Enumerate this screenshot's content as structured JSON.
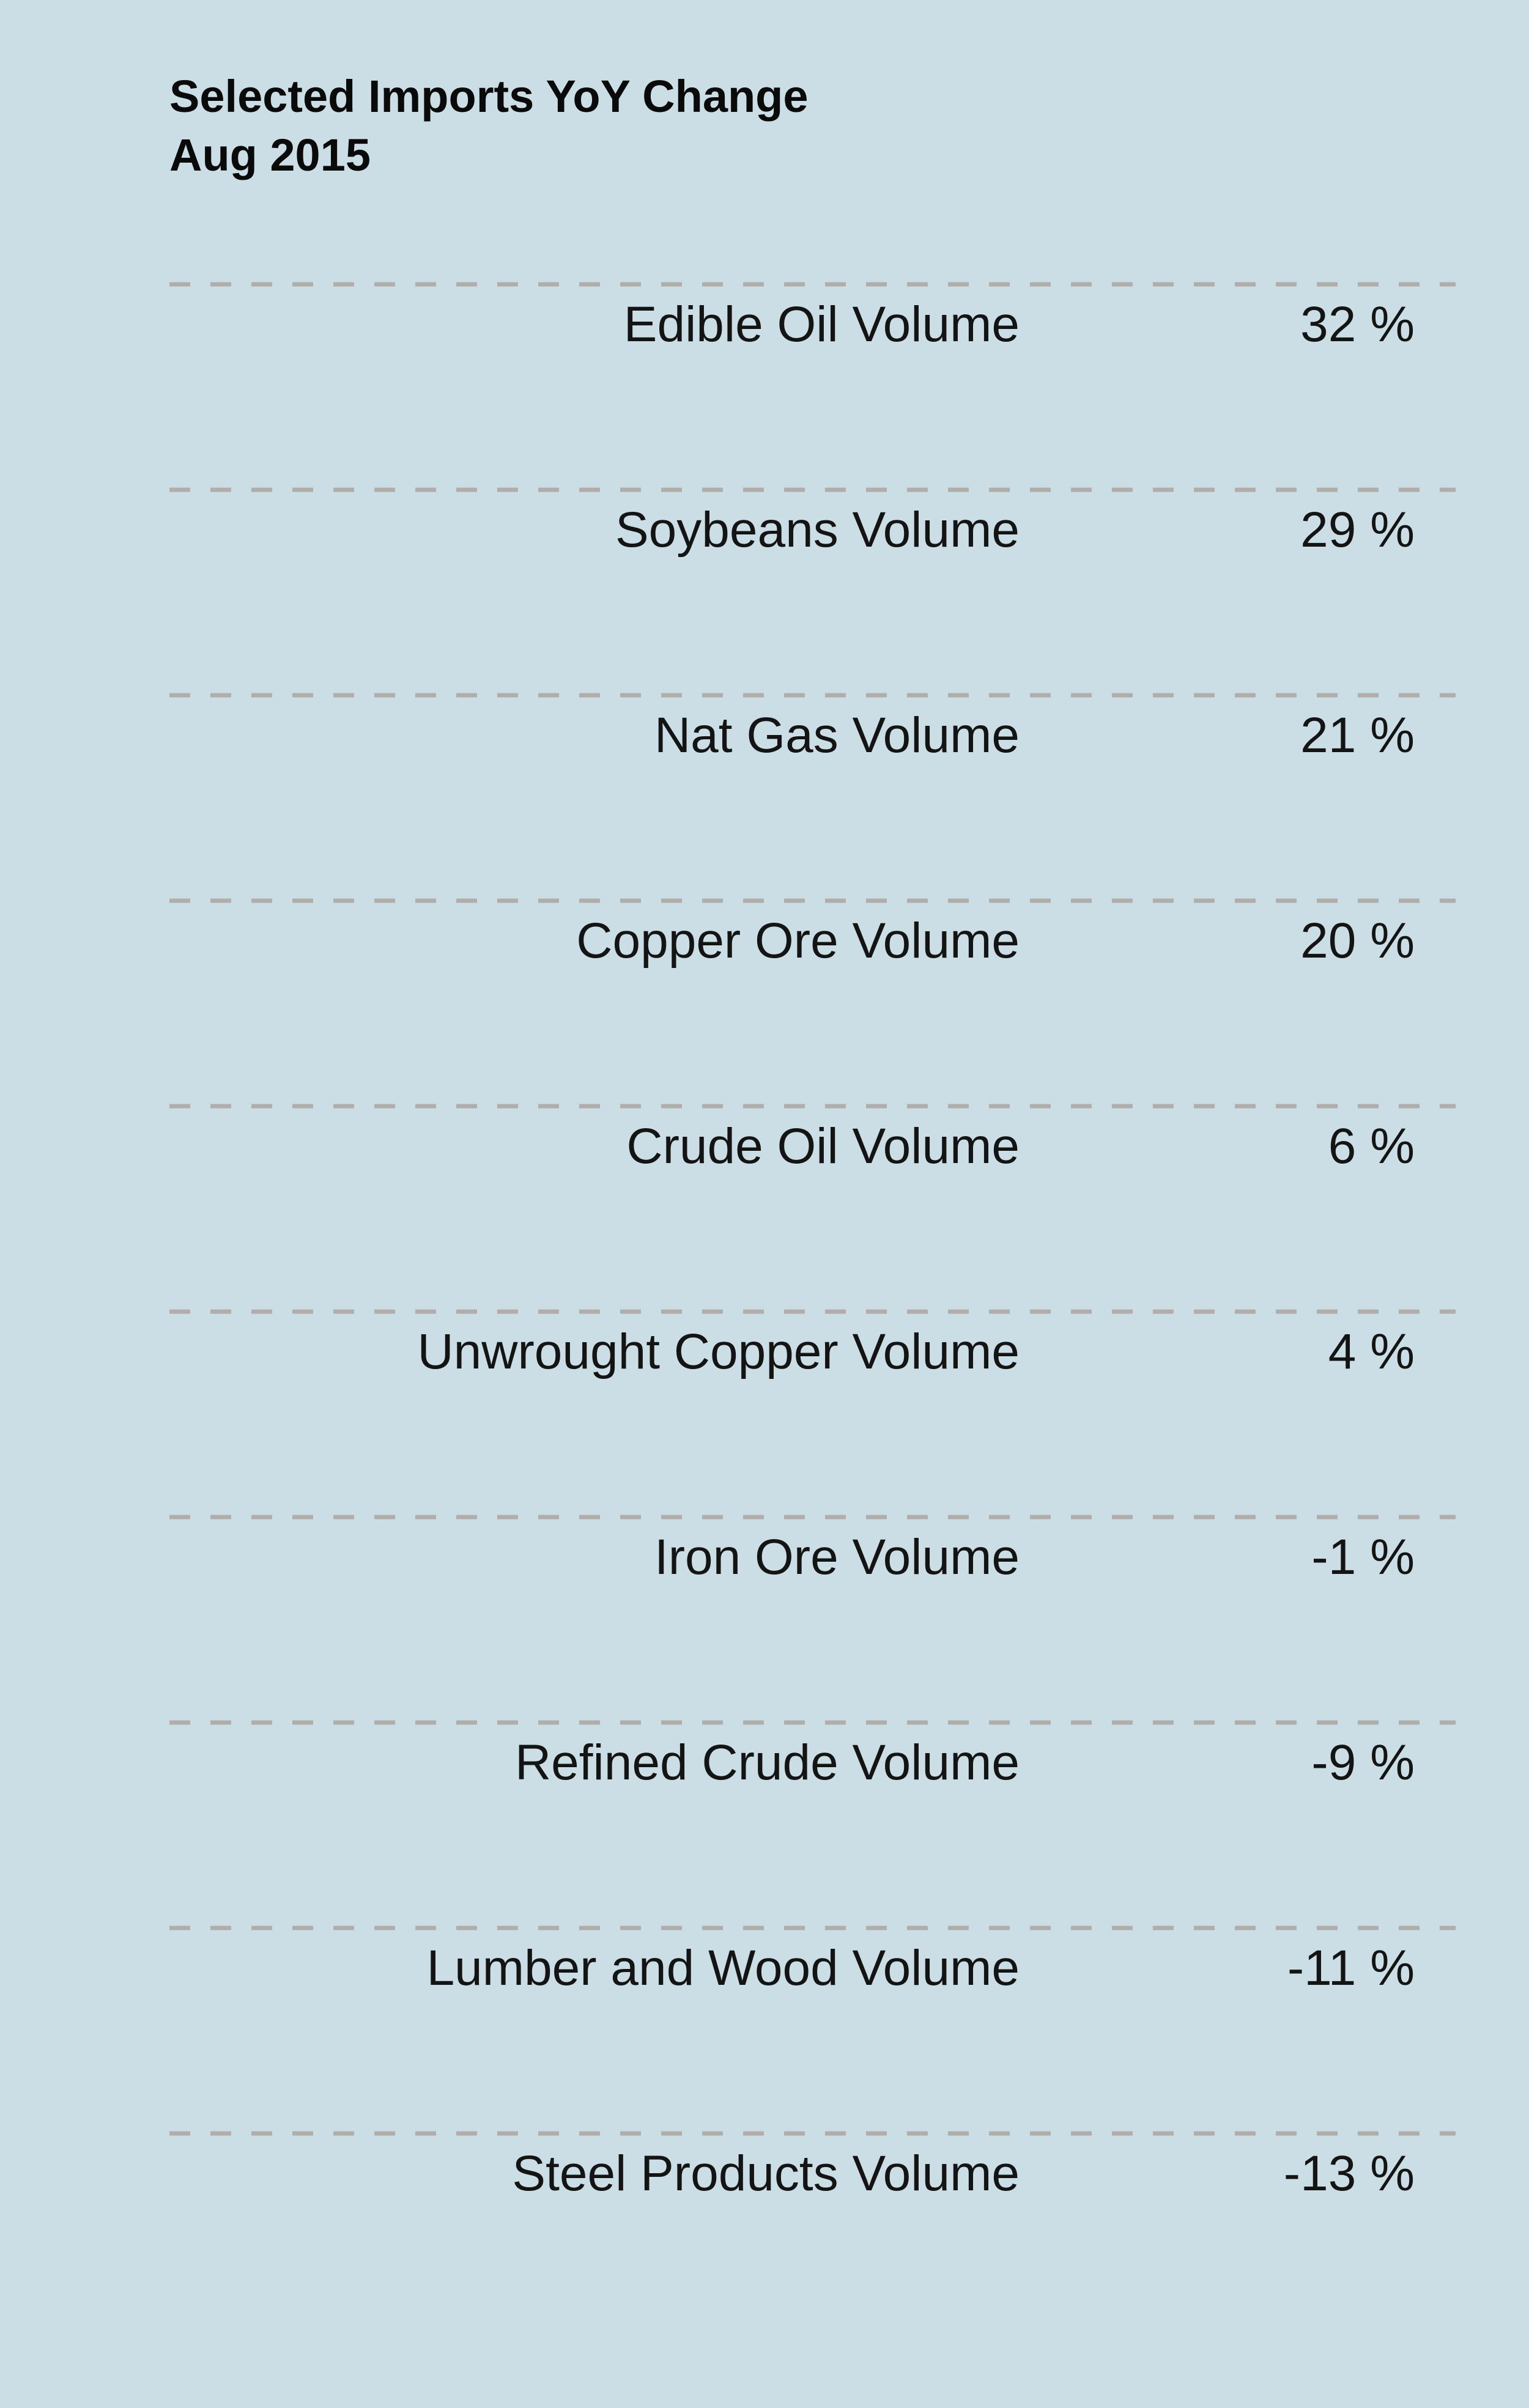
{
  "chart_data": {
    "type": "table",
    "title": "Selected Imports YoY Change",
    "subtitle": "Aug 2015",
    "unit": "%",
    "rows": [
      {
        "label": "Edible Oil Volume",
        "value": 32
      },
      {
        "label": "Soybeans Volume",
        "value": 29
      },
      {
        "label": "Nat Gas Volume",
        "value": 21
      },
      {
        "label": "Copper Ore Volume",
        "value": 20
      },
      {
        "label": "Crude Oil Volume",
        "value": 6
      },
      {
        "label": "Unwrought Copper Volume",
        "value": 4
      },
      {
        "label": "Iron Ore Volume",
        "value": -1
      },
      {
        "label": "Refined Crude Volume",
        "value": -9
      },
      {
        "label": "Lumber and Wood Volume",
        "value": -11
      },
      {
        "label": "Steel Products Volume",
        "value": -13
      }
    ],
    "colors": {
      "background": "#cbdee5",
      "divider": "#b0adaa",
      "text": "#141414"
    }
  }
}
